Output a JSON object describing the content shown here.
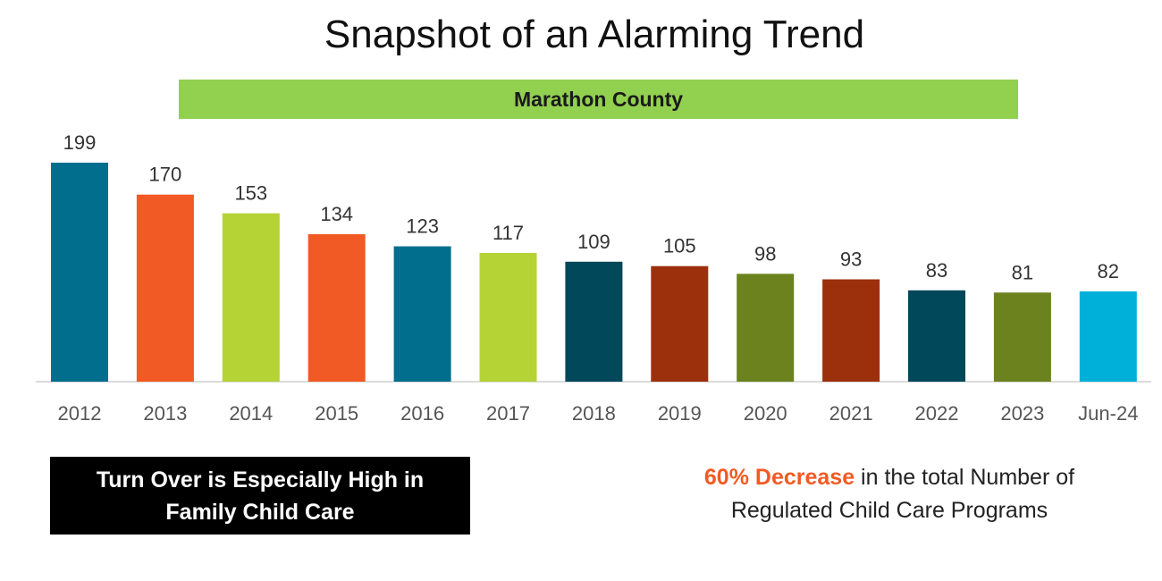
{
  "title": "Snapshot of an Alarming Trend",
  "banner": "Marathon County",
  "chart_data": {
    "type": "bar",
    "title": "Marathon County",
    "categories": [
      "2012",
      "2013",
      "2014",
      "2015",
      "2016",
      "2017",
      "2018",
      "2019",
      "2020",
      "2021",
      "2022",
      "2023",
      "Jun-24"
    ],
    "values": [
      199,
      170,
      153,
      134,
      123,
      117,
      109,
      105,
      98,
      93,
      83,
      81,
      82
    ],
    "colors": [
      "#006e8c",
      "#f15a24",
      "#b5d334",
      "#f15a24",
      "#006e8c",
      "#b5d334",
      "#00485a",
      "#9c300c",
      "#6c821e",
      "#9c300c",
      "#00485a",
      "#6c821e",
      "#00b0d8"
    ],
    "ylim": [
      0,
      199
    ],
    "xlabel": "",
    "ylabel": "",
    "grid": false,
    "data_labels": true
  },
  "callouts": {
    "left_line1": "Turn Over is Especially High in",
    "left_line2": "Family Child Care",
    "right_highlight": "60% Decrease",
    "right_text1": " in the total Number of",
    "right_text2": "Regulated Child Care Programs"
  }
}
